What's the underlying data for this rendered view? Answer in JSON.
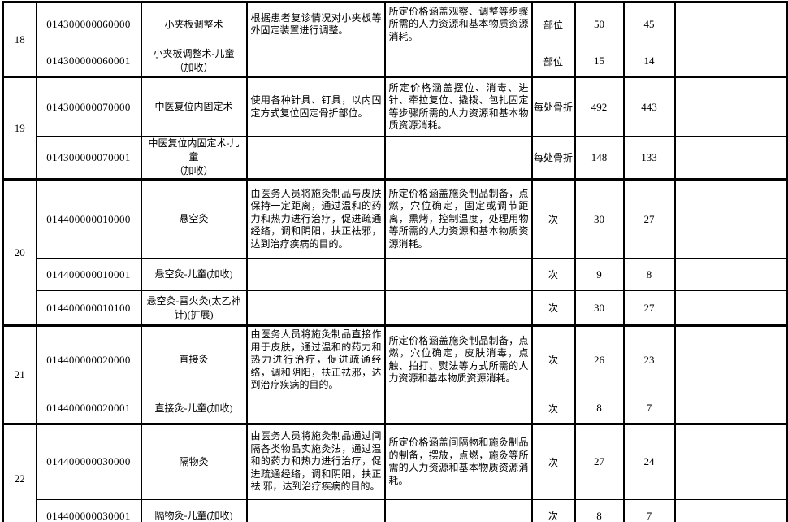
{
  "table": {
    "groups": [
      {
        "no": "18",
        "rows": [
          {
            "code": "014300000060000",
            "name": "小夹板调整术",
            "desc": "根据患者复诊情况对小夹板等外固定装置进行调整。",
            "coverage": "所定价格涵盖观察、调整等步骤所需的人力资源和基本物质资源消耗。",
            "unit": "部位",
            "price1": "50",
            "price2": "45",
            "extra": ""
          },
          {
            "code": "014300000060001",
            "name": "小夹板调整术-儿童\n（加收）",
            "desc": "",
            "coverage": "",
            "unit": "部位",
            "price1": "15",
            "price2": "14",
            "extra": ""
          }
        ]
      },
      {
        "no": "19",
        "rows": [
          {
            "code": "014300000070000",
            "name": "中医复位内固定术",
            "desc": "使用各种针具、钉具，以内固定方式复位固定骨折部位。",
            "coverage": "所定价格涵盖摆位、消毒、进针、牵拉复位、撬拨、包扎固定等步骤所需的人力资源和基本物质资源消耗。",
            "unit": "每处骨折",
            "price1": "492",
            "price2": "443",
            "extra": ""
          },
          {
            "code": "014300000070001",
            "name": "中医复位内固定术-儿童\n（加收）",
            "desc": "",
            "coverage": "",
            "unit": "每处骨折",
            "price1": "148",
            "price2": "133",
            "extra": ""
          }
        ]
      },
      {
        "no": "20",
        "rows": [
          {
            "code": "014400000010000",
            "name": "悬空灸",
            "desc": "由医务人员将施灸制品与皮肤保持一定距离，通过温和的药力和热力进行治疗，促进疏通经络，调和阴阳，扶正祛邪，达到治疗疾病的目的。",
            "coverage": "所定价格涵盖施灸制品制备，点燃，穴位确定，固定或调节距离，熏烤，控制温度，处理用物等所需的人力资源和基本物质资源消耗。",
            "unit": "次",
            "price1": "30",
            "price2": "27",
            "extra": ""
          },
          {
            "code": "014400000010001",
            "name": "悬空灸-儿童(加收)",
            "desc": "",
            "coverage": "",
            "unit": "次",
            "price1": "9",
            "price2": "8",
            "extra": ""
          },
          {
            "code": "014400000010100",
            "name": "悬空灸-雷火灸(太乙神\n针)(扩展)",
            "desc": "",
            "coverage": "",
            "unit": "次",
            "price1": "30",
            "price2": "27",
            "extra": ""
          }
        ]
      },
      {
        "no": "21",
        "rows": [
          {
            "code": "014400000020000",
            "name": "直接灸",
            "desc": "由医务人员将施灸制品直接作用于皮肤，通过温和的药力和热力进行治疗，促进疏通经络，调和阴阳，扶正祛邪，达到治疗疾病的目的。",
            "coverage": "所定价格涵盖施灸制品制备，点燃，穴位确定，皮肤消毒，点触、拍打、熨法等方式所需的人力资源和基本物质资源消耗。",
            "unit": "次",
            "price1": "26",
            "price2": "23",
            "extra": ""
          },
          {
            "code": "014400000020001",
            "name": "直接灸-儿童(加收)",
            "desc": "",
            "coverage": "",
            "unit": "次",
            "price1": "8",
            "price2": "7",
            "extra": ""
          }
        ]
      },
      {
        "no": "22",
        "rows": [
          {
            "code": "014400000030000",
            "name": "隔物灸",
            "desc": "由医务人员将施灸制品通过间隔各类物品实施灸法，通过温和的药力和热力进行治疗，促进疏通经络，调和阴阳，扶正祛 邪，达到治疗疾病的目的。",
            "coverage": "所定价格涵盖间隔物和施灸制品的制备，摆放，点燃，施灸等所需的人力资源和基本物质资源消耗。",
            "unit": "次",
            "price1": "27",
            "price2": "24",
            "extra": ""
          },
          {
            "code": "014400000030001",
            "name": "隔物灸-儿童(加收)",
            "desc": "",
            "coverage": "",
            "unit": "次",
            "price1": "8",
            "price2": "7",
            "extra": ""
          }
        ]
      }
    ]
  }
}
